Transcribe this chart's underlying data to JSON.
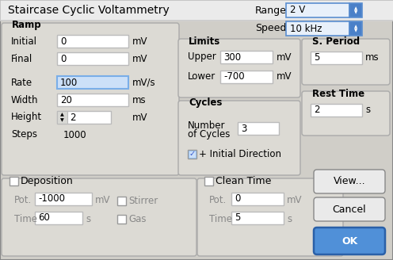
{
  "title": "Staircase Cyclic Voltammetry",
  "range_label": "Range:",
  "range_value": "2 V",
  "speed_label": "Speed:",
  "speed_value": "10 kHz",
  "s_period_value": "5",
  "s_period_unit": "ms",
  "rest_time_value": "2",
  "rest_time_unit": "s",
  "bg": "#d0cec8",
  "panel_bg": "#e2e0dc",
  "white": "#ffffff",
  "blue_hi": "#cce0f8",
  "blue_border": "#7aaee8",
  "dropdown_bg": "#e8f0fa",
  "dropdown_border": "#5a8ed0",
  "dropdown_blue": "#4a80c8",
  "btn_bg": "#eaeaea",
  "btn_border": "#888888",
  "ok_bg": "#5090d8",
  "ok_border": "#2a60a8",
  "group_bg": "#dcdad4",
  "group_border": "#aaaaaa",
  "dim_text": "#888888",
  "check_blue": "#3355cc"
}
